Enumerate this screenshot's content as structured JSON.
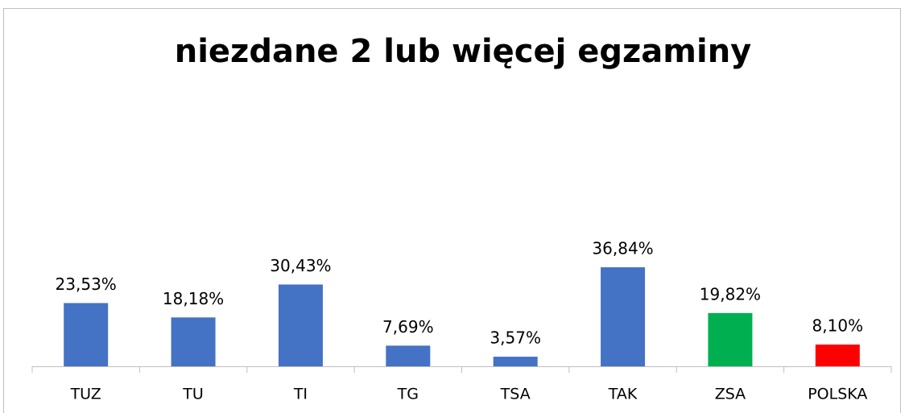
{
  "chart_data": {
    "type": "bar",
    "title": "niezdane 2 lub więcej egzaminy",
    "categories": [
      "TUZ",
      "TU",
      "TI",
      "TG",
      "TSA",
      "TAK",
      "ZSA",
      "POLSKA"
    ],
    "values": [
      23.53,
      18.18,
      30.43,
      7.69,
      3.57,
      36.84,
      19.82,
      8.1
    ],
    "value_labels": [
      "23,53%",
      "18,18%",
      "30,43%",
      "7,69%",
      "3,57%",
      "36,84%",
      "19,82%",
      "8,10%"
    ],
    "colors": [
      "#4472c4",
      "#4472c4",
      "#4472c4",
      "#4472c4",
      "#4472c4",
      "#4472c4",
      "#00b050",
      "#ff0000"
    ]
  }
}
